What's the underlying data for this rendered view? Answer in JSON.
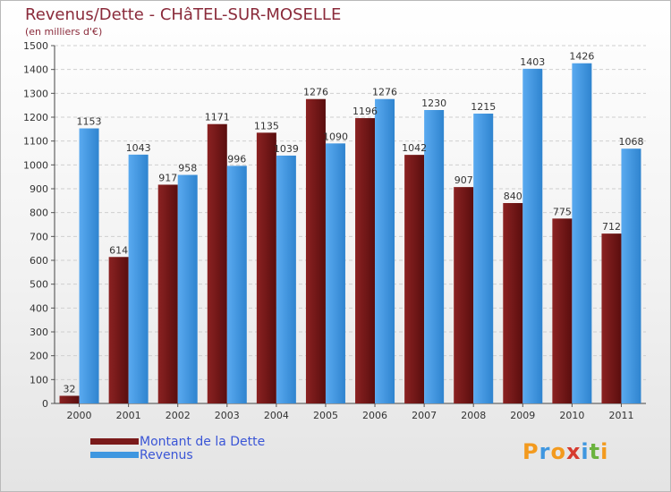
{
  "header": {
    "title": "Revenus/Dette - CHâTEL-SUR-MOSELLE",
    "subtitle": "(en milliers d'€)"
  },
  "legend": {
    "items": [
      {
        "label": "Montant de la Dette",
        "color": "#7a1a1a"
      },
      {
        "label": "Revenus",
        "color": "#3f97e0"
      }
    ]
  },
  "logo": {
    "text": "Proxiti",
    "letter_colors": [
      "#f39a1e",
      "#3f97e0",
      "#f39a1e",
      "#d63b2f",
      "#3f97e0",
      "#6cb33f",
      "#f39a1e"
    ]
  },
  "chart_data": {
    "type": "bar",
    "categories": [
      "2000",
      "2001",
      "2002",
      "2003",
      "2004",
      "2005",
      "2006",
      "2007",
      "2008",
      "2009",
      "2010",
      "2011"
    ],
    "series": [
      {
        "name": "Montant de la Dette",
        "color": "#7a1a1a",
        "values": [
          32,
          614,
          917,
          1171,
          1135,
          1276,
          1196,
          1042,
          907,
          840,
          775,
          712
        ]
      },
      {
        "name": "Revenus",
        "color": "#3f97e0",
        "values": [
          1153,
          1043,
          958,
          996,
          1039,
          1090,
          1276,
          1230,
          1215,
          1403,
          1426,
          1068
        ]
      }
    ],
    "title": "Revenus/Dette - CHâTEL-SUR-MOSELLE",
    "ylabel": "(en milliers d'€)",
    "ylim": [
      0,
      1500
    ],
    "yticks": [
      0,
      100,
      200,
      300,
      400,
      500,
      600,
      700,
      800,
      900,
      1000,
      1100,
      1200,
      1300,
      1400,
      1500
    ],
    "grid": true,
    "legend_position": "bottom-left"
  }
}
